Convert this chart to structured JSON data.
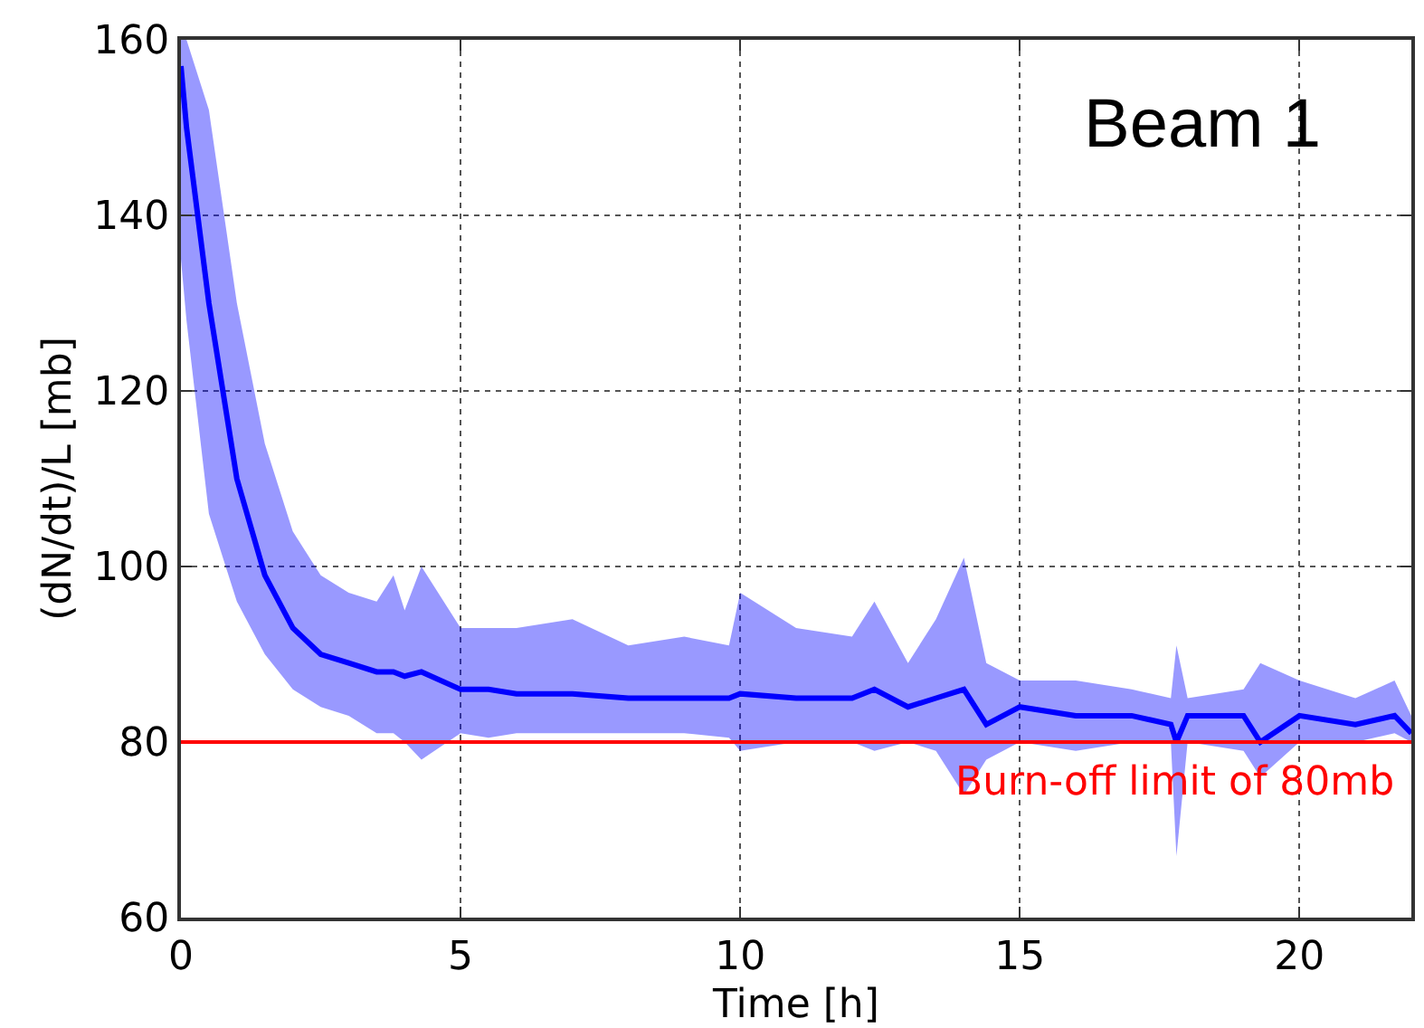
{
  "chart_data": {
    "type": "line",
    "xlabel": "Time [h]",
    "ylabel": "(dN/dt)/L [mb]",
    "xlim": [
      0,
      22
    ],
    "ylim": [
      60,
      160
    ],
    "xticks": [
      0,
      5,
      10,
      15,
      20
    ],
    "yticks": [
      60,
      80,
      100,
      120,
      140,
      160
    ],
    "grid": true,
    "marker": "none",
    "line_style": "solid",
    "series": [
      {
        "color": "#0000ff",
        "x": [
          0,
          0.1,
          0.5,
          1,
          1.5,
          2,
          2.5,
          3,
          3.5,
          3.8,
          4,
          4.3,
          5,
          5.5,
          6,
          7,
          8,
          9,
          9.8,
          10,
          11,
          12,
          12.4,
          13,
          13.5,
          14,
          14.4,
          15,
          16,
          17,
          17.7,
          17.8,
          18,
          19,
          19.3,
          20,
          21,
          21.7,
          22
        ],
        "values": [
          157,
          150,
          130,
          110,
          99,
          93,
          90,
          89,
          88,
          88,
          87.5,
          88,
          86,
          86,
          85.5,
          85.5,
          85,
          85,
          85,
          85.5,
          85,
          85,
          86,
          84,
          85,
          86,
          82,
          84,
          83,
          83,
          82,
          80,
          83,
          83,
          80,
          83,
          82,
          83,
          81
        ],
        "lower": [
          135,
          128,
          106,
          96,
          90,
          86,
          84,
          83,
          81,
          81,
          80,
          78,
          81,
          80.5,
          81,
          81,
          81,
          81,
          80.5,
          79,
          80,
          80,
          79,
          80,
          79,
          74,
          78,
          80,
          79,
          80,
          80,
          67,
          80,
          79,
          76,
          80,
          80,
          81,
          80
        ],
        "upper": [
          160,
          160,
          152,
          130,
          114,
          104,
          99,
          97,
          96,
          99,
          95,
          100,
          93,
          93,
          93,
          94,
          91,
          92,
          91,
          97,
          93,
          92,
          96,
          89,
          94,
          101,
          89,
          87,
          87,
          86,
          85,
          91,
          85,
          86,
          89,
          87,
          85,
          87,
          83
        ]
      }
    ],
    "ref_lines": [
      {
        "axis": "y",
        "value": 80,
        "label": "Burn-off limit of 80mb",
        "color": "#ff0000",
        "line_style": "solid"
      }
    ],
    "annotations": [
      "Beam 1"
    ]
  }
}
